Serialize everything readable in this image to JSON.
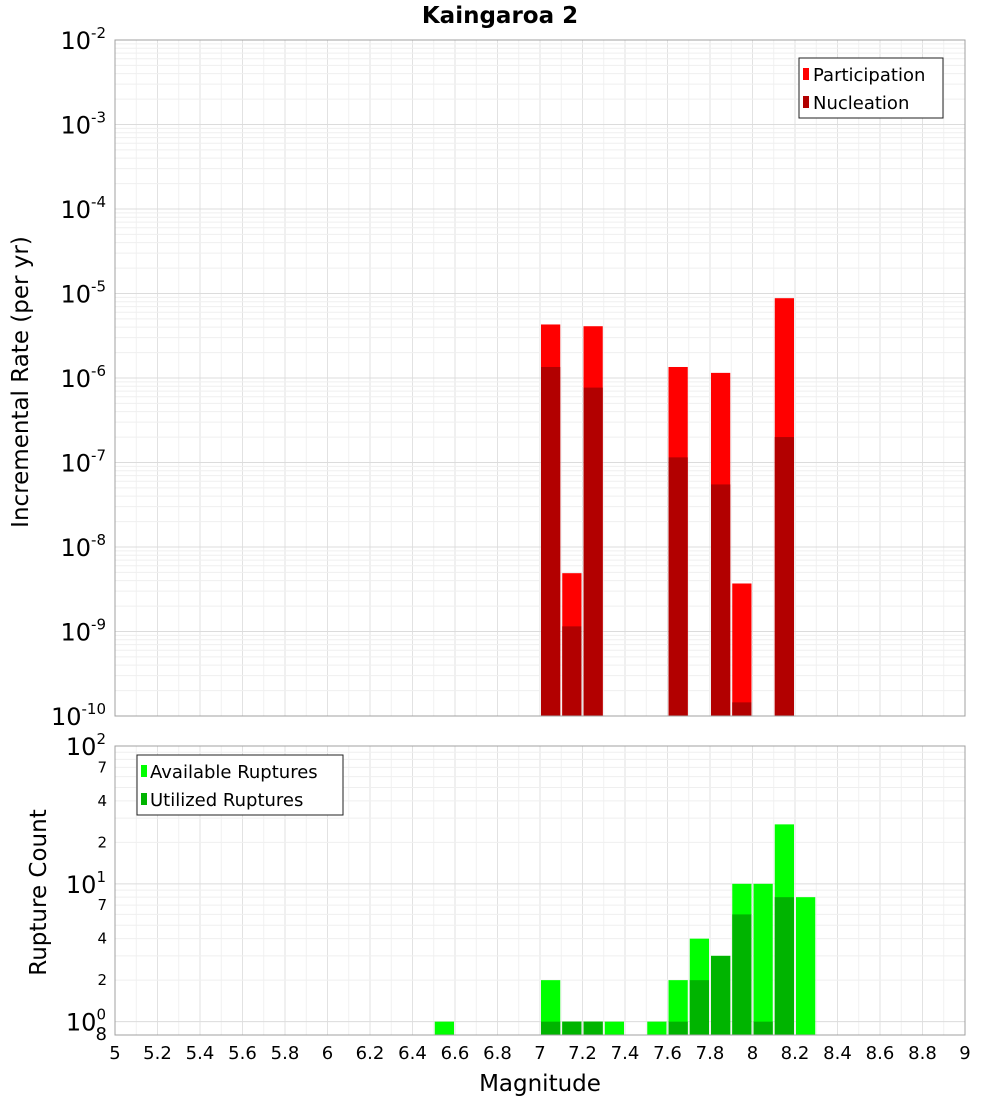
{
  "chart_data": [
    {
      "type": "bar",
      "title": "Kaingaroa 2",
      "xlabel": "",
      "ylabel": "Incremental Rate (per yr)",
      "xlim": [
        5,
        9
      ],
      "ylim": [
        1e-10,
        0.01
      ],
      "yscale": "log",
      "grid": true,
      "legend_position": "top-right",
      "bin_width": 0.1,
      "x": [
        7.05,
        7.15,
        7.25,
        7.65,
        7.85,
        7.95,
        8.15
      ],
      "series": [
        {
          "name": "Participation",
          "color": "#ff0000",
          "values": [
            4.3e-06,
            4.9e-09,
            4.1e-06,
            1.35e-06,
            1.15e-06,
            3.7e-09,
            8.8e-06
          ]
        },
        {
          "name": "Nucleation",
          "color": "#b20000",
          "values": [
            1.35e-06,
            1.15e-09,
            7.7e-07,
            1.15e-07,
            5.5e-08,
            1.45e-10,
            2e-07
          ]
        }
      ],
      "y_ticks": [
        "10^-2",
        "10^-3",
        "10^-4",
        "10^-5",
        "10^-6",
        "10^-7",
        "10^-8",
        "10^-9",
        "10^-10"
      ]
    },
    {
      "type": "bar",
      "title": "",
      "xlabel": "Magnitude",
      "ylabel": "Rupture Count",
      "xlim": [
        5,
        9
      ],
      "ylim": [
        0.8,
        100
      ],
      "yscale": "log",
      "grid": true,
      "legend_position": "top-left",
      "bin_width": 0.1,
      "x": [
        6.55,
        7.05,
        7.15,
        7.25,
        7.35,
        7.55,
        7.65,
        7.75,
        7.85,
        7.95,
        8.05,
        8.15,
        8.25
      ],
      "series": [
        {
          "name": "Available Ruptures",
          "color": "#00ff00",
          "values": [
            1,
            2,
            1,
            1,
            1,
            1,
            2,
            4,
            3,
            10,
            10,
            27,
            8
          ]
        },
        {
          "name": "Utilized Ruptures",
          "color": "#00b400",
          "values": [
            0,
            1,
            1,
            1,
            0,
            0,
            1,
            2,
            3,
            6,
            1,
            8,
            0
          ]
        }
      ],
      "x_ticks": [
        "5",
        "5.2",
        "5.4",
        "5.6",
        "5.8",
        "6",
        "6.2",
        "6.4",
        "6.6",
        "6.8",
        "7",
        "7.2",
        "7.4",
        "7.6",
        "7.8",
        "8",
        "8.2",
        "8.4",
        "8.6",
        "8.8",
        "9"
      ],
      "y_major_ticks": [
        "10^2",
        "10^1",
        "10^0"
      ],
      "y_minor_ticks": [
        "7",
        "4",
        "2",
        "7",
        "4",
        "2",
        "8"
      ]
    }
  ]
}
